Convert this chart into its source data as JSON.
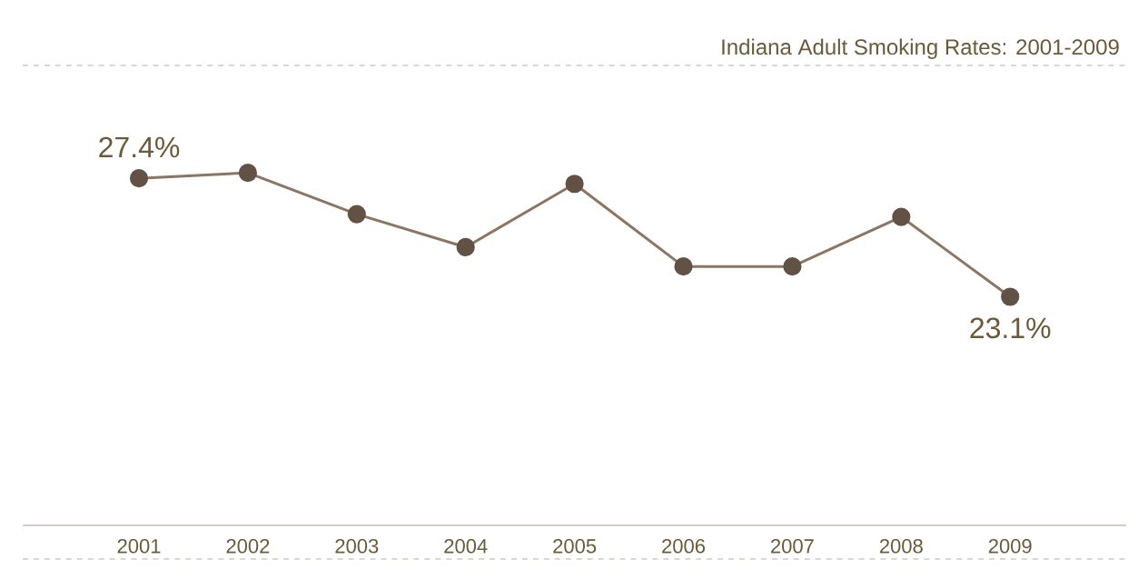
{
  "chart_data": {
    "type": "line",
    "title": "Indiana Adult Smoking Rates: 2001-2009",
    "categories": [
      "2001",
      "2002",
      "2003",
      "2004",
      "2005",
      "2006",
      "2007",
      "2008",
      "2009"
    ],
    "values": [
      27.4,
      27.6,
      26.1,
      24.9,
      27.2,
      24.2,
      24.2,
      26.0,
      23.1
    ],
    "value_labels": [
      "27.4%",
      null,
      null,
      null,
      null,
      null,
      null,
      null,
      "23.1%"
    ],
    "color": "#8c7562",
    "marker": "circle",
    "line_style": "solid",
    "ylim": [
      14.8,
      31.4
    ]
  }
}
